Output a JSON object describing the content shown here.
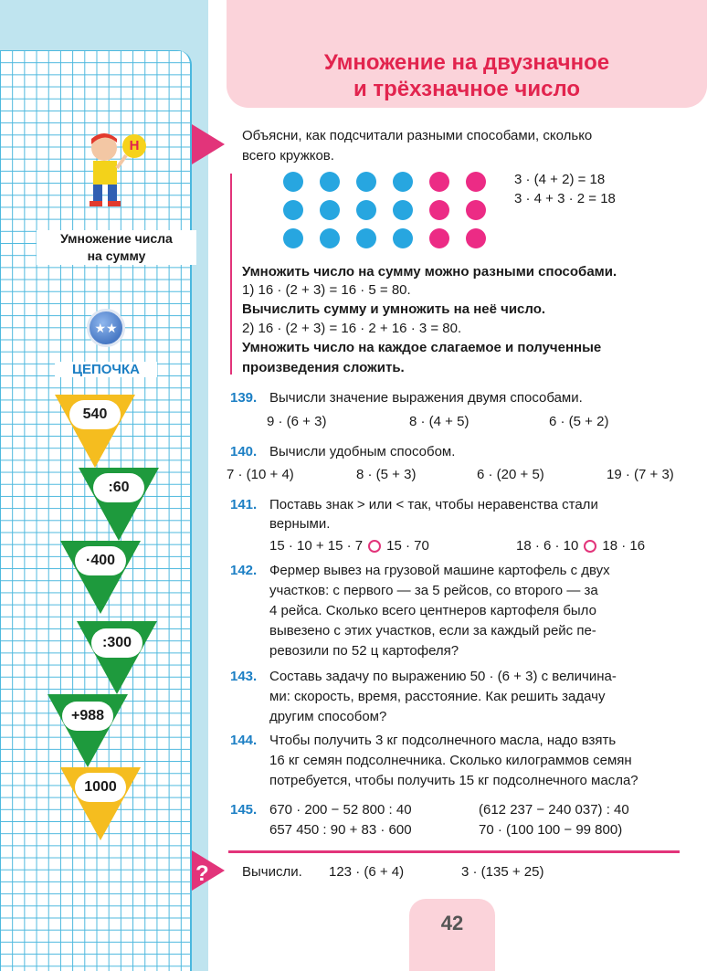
{
  "title": {
    "line1": "Умножение на двузначное",
    "line2": "и трёхзначное число"
  },
  "sidebar": {
    "marker": "Н",
    "topic_line1": "Умножение числа",
    "topic_line2": "на сумму",
    "chain_label": "ЦЕПОЧКА",
    "chain": [
      "540",
      ":60",
      "·400",
      ":300",
      "+988",
      "1000"
    ]
  },
  "intro": {
    "prompt_line1": "Объясни, как подсчитали разными способами, сколько",
    "prompt_line2": "всего кружков.",
    "eq1": "3 · (4 + 2) = 18",
    "eq2": "3 · 4 + 3 · 2 = 18",
    "rule1": "Умножить число на сумму можно разными способами.",
    "step1": "1)   16 · (2 + 3) = 16 · 5 = 80.",
    "rule2": "Вычислить сумму и умножить на неё число.",
    "step2": "2)   16 · (2 + 3) = 16 · 2 + 16 · 3 = 80.",
    "rule3_line1": "Умножить число на каждое слагаемое и полученные",
    "rule3_line2": "произведения сложить."
  },
  "tasks": {
    "t139": {
      "num": "139.",
      "text": "Вычисли значение выражения двумя способами.",
      "exprs": [
        "9 · (6 + 3)",
        "8 · (4 + 5)",
        "6 · (5 + 2)"
      ]
    },
    "t140": {
      "num": "140.",
      "text": "Вычисли удобным способом.",
      "exprs": [
        "7 · (10 + 4)",
        "8 · (5 + 3)",
        "6 · (20 + 5)",
        "19 · (7 + 3)"
      ]
    },
    "t141": {
      "num": "141.",
      "line1": "Поставь знак > или < так, чтобы неравенства стали",
      "line2": "верными.",
      "a_left": "15 · 10 + 15 · 7",
      "a_right": "15 · 70",
      "b_left": "18 · 6 · 10",
      "b_right": "18 · 16"
    },
    "t142": {
      "num": "142.",
      "lines": [
        "Фермер вывез на грузовой машине картофель с двух",
        "участков: с первого — за 5 рейсов, со второго — за",
        "4 рейса. Сколько всего центнеров картофеля было",
        "вывезено с этих участков, если за каждый рейс пе-",
        "ревозили по 52 ц картофеля?"
      ]
    },
    "t143": {
      "num": "143.",
      "lines": [
        "Составь задачу по выражению 50 · (6 + 3) с величина-",
        "ми: скорость, время, расстояние. Как решить задачу",
        "другим способом?"
      ]
    },
    "t144": {
      "num": "144.",
      "lines": [
        "Чтобы получить 3 кг подсолнечного масла, надо взять",
        "16 кг семян подсолнечника. Сколько килограммов семян",
        "потребуется, чтобы получить 15 кг подсолнечного масла?"
      ]
    },
    "t145": {
      "num": "145.",
      "exprs": [
        "670 · 200 − 52 800 : 40",
        "(612 237 − 240 037) : 40",
        "657 450 : 90 + 83 · 600",
        "70 · (100 100 − 99 800)"
      ]
    }
  },
  "extra": {
    "mark": "?",
    "label": "Вычисли.",
    "expr1": "123 · (6 + 4)",
    "expr2": "3 · (135 + 25)"
  },
  "page_number": "42",
  "colors": {
    "title": "#e2244e",
    "task_number": "#1c7fc4",
    "accent": "#e2347a",
    "dot_blue": "#27a6e0",
    "dot_pink": "#ec2b85"
  }
}
